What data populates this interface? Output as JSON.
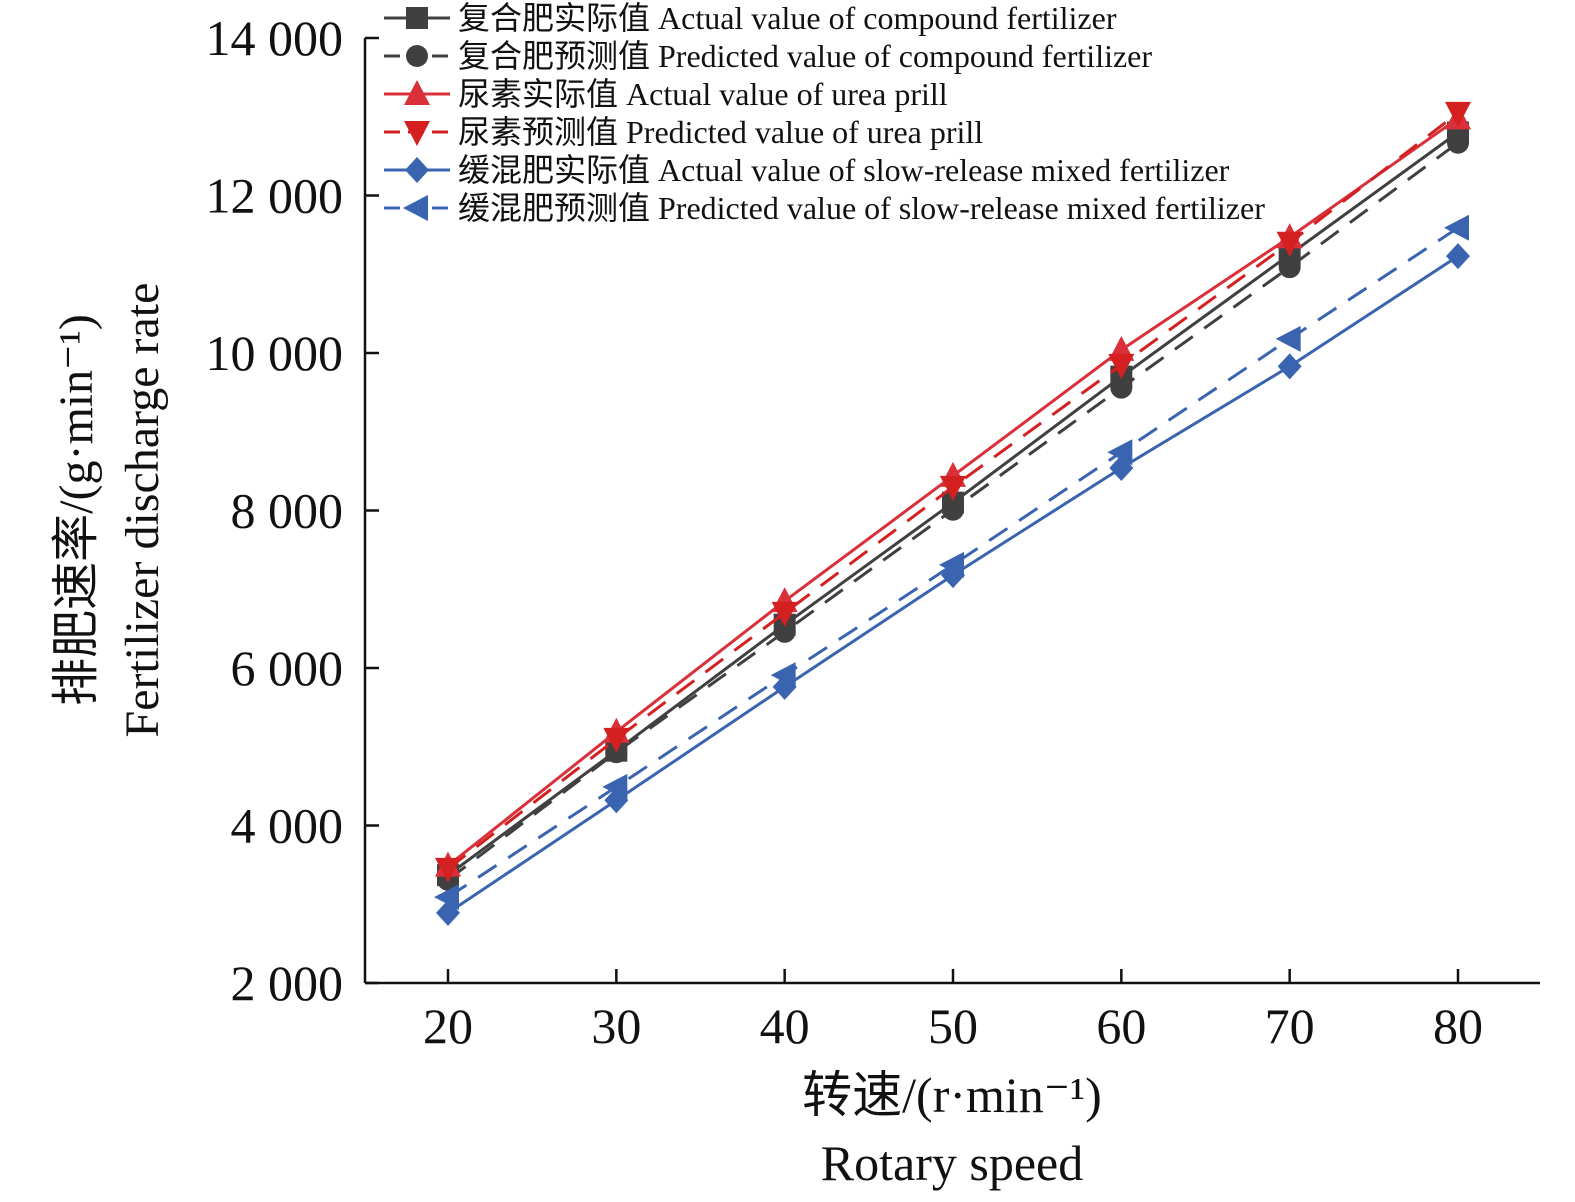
{
  "chart_data": {
    "type": "line",
    "title": "",
    "xlabel": "转速/(r·min⁻¹)",
    "xlabel_en": "Rotary speed",
    "ylabel": "排肥速率/(g·min⁻¹)",
    "ylabel_en": "Fertilizer discharge rate",
    "x": [
      20,
      30,
      40,
      50,
      60,
      70,
      80
    ],
    "xlim": [
      15,
      85
    ],
    "ylim": [
      2000,
      14000
    ],
    "xticks": [
      "20",
      "30",
      "40",
      "50",
      "60",
      "70",
      "80"
    ],
    "yticks": [
      2000,
      4000,
      6000,
      8000,
      10000,
      12000,
      14000
    ],
    "ytick_labels": [
      "2 000",
      "4 000",
      "6 000",
      "8 000",
      "10 000",
      "12 000",
      "14 000"
    ],
    "grid": false,
    "legend_position": "top-left",
    "series": [
      {
        "name": "复合肥实际值 Actual value of compound fertilizer",
        "color": "#404040",
        "dash": false,
        "marker": "square",
        "values": [
          3370,
          4950,
          6550,
          8100,
          9700,
          11250,
          12800
        ]
      },
      {
        "name": "复合肥预测值 Predicted value of compound fertilizer",
        "color": "#404040",
        "dash": true,
        "marker": "circle",
        "values": [
          3310,
          4930,
          6460,
          8010,
          9560,
          11090,
          12670
        ]
      },
      {
        "name": "尿素实际值 Actual value of urea prill",
        "color": "#d9303a",
        "dash": false,
        "marker": "triangle-up",
        "values": [
          3490,
          5190,
          6850,
          8440,
          10040,
          11470,
          12980
        ]
      },
      {
        "name": "尿素预测值 Predicted value of urea prill",
        "color": "#d42020",
        "dash": true,
        "marker": "triangle-down",
        "values": [
          3450,
          5100,
          6700,
          8300,
          9850,
          11400,
          13050
        ]
      },
      {
        "name": "缓混肥实际值 Actual value of slow-release mixed fertilizer",
        "color": "#3a64b0",
        "dash": false,
        "marker": "diamond",
        "values": [
          2890,
          4320,
          5760,
          7180,
          8540,
          9830,
          11230
        ]
      },
      {
        "name": "缓混肥预测值 Predicted value of slow-release mixed fertilizer",
        "color": "#3a64b0",
        "dash": true,
        "marker": "triangle-left",
        "values": [
          3090,
          4490,
          5910,
          7310,
          8740,
          10180,
          11590
        ]
      }
    ]
  }
}
